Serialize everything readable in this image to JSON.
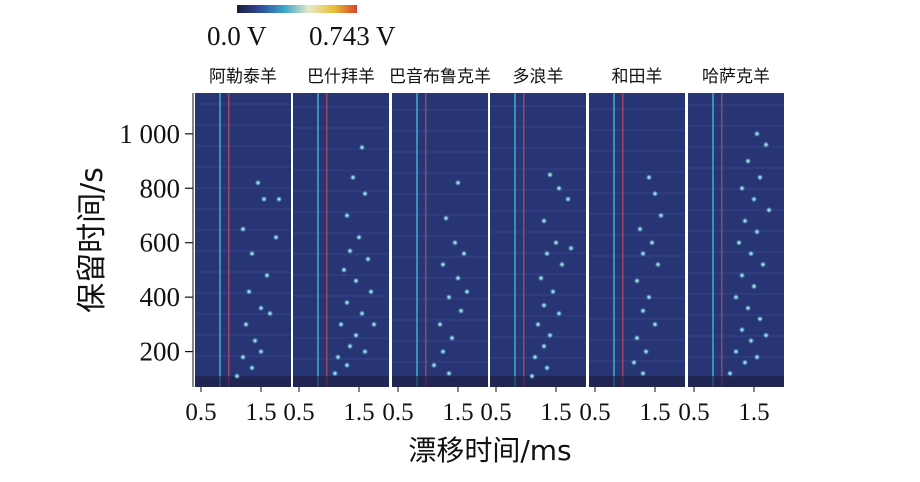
{
  "chart_data": {
    "type": "heatmap",
    "title": "",
    "xlabel": "漂移时间/ms",
    "ylabel": "保留时间/s",
    "colorbar": {
      "min_label": "0.0 V",
      "max_label": "0.743 V",
      "min": 0.0,
      "max": 0.743,
      "colors": [
        "#1b1b3a",
        "#2f4fa0",
        "#3fa7c9",
        "#e9e9c8",
        "#e7c23a",
        "#d8432a"
      ]
    },
    "x_ticks": [
      "0.5",
      "1.5"
    ],
    "x_range": [
      0.4,
      2.0
    ],
    "y_ticks": [
      "200",
      "400",
      "600",
      "800",
      "1 000"
    ],
    "y_tick_values": [
      200,
      400,
      600,
      800,
      1000
    ],
    "y_range": [
      70,
      1150
    ],
    "background_color": "#283574",
    "panels": [
      {
        "name": "阿勒泰羊",
        "spots": [
          [
            1.45,
            820
          ],
          [
            1.55,
            760
          ],
          [
            1.2,
            650
          ],
          [
            1.35,
            560
          ],
          [
            1.6,
            480
          ],
          [
            1.3,
            420
          ],
          [
            1.5,
            360
          ],
          [
            1.25,
            300
          ],
          [
            1.4,
            240
          ],
          [
            1.2,
            180
          ],
          [
            1.35,
            140
          ],
          [
            1.1,
            110
          ],
          [
            1.5,
            200
          ],
          [
            1.65,
            340
          ],
          [
            1.75,
            620
          ],
          [
            1.8,
            760
          ]
        ]
      },
      {
        "name": "巴什拜羊",
        "spots": [
          [
            1.55,
            950
          ],
          [
            1.4,
            840
          ],
          [
            1.6,
            780
          ],
          [
            1.3,
            700
          ],
          [
            1.5,
            620
          ],
          [
            1.35,
            570
          ],
          [
            1.65,
            540
          ],
          [
            1.25,
            500
          ],
          [
            1.45,
            460
          ],
          [
            1.7,
            420
          ],
          [
            1.3,
            380
          ],
          [
            1.55,
            340
          ],
          [
            1.2,
            300
          ],
          [
            1.45,
            260
          ],
          [
            1.35,
            220
          ],
          [
            1.15,
            180
          ],
          [
            1.3,
            150
          ],
          [
            1.1,
            120
          ],
          [
            1.6,
            200
          ],
          [
            1.75,
            300
          ]
        ]
      },
      {
        "name": "巴音布鲁克羊",
        "spots": [
          [
            1.5,
            820
          ],
          [
            1.3,
            690
          ],
          [
            1.45,
            600
          ],
          [
            1.6,
            560
          ],
          [
            1.25,
            520
          ],
          [
            1.5,
            470
          ],
          [
            1.35,
            400
          ],
          [
            1.55,
            350
          ],
          [
            1.2,
            300
          ],
          [
            1.4,
            250
          ],
          [
            1.25,
            200
          ],
          [
            1.1,
            150
          ],
          [
            1.35,
            120
          ],
          [
            1.65,
            420
          ]
        ]
      },
      {
        "name": "多浪羊",
        "spots": [
          [
            1.4,
            850
          ],
          [
            1.55,
            800
          ],
          [
            1.7,
            760
          ],
          [
            1.3,
            680
          ],
          [
            1.5,
            600
          ],
          [
            1.35,
            560
          ],
          [
            1.6,
            520
          ],
          [
            1.25,
            470
          ],
          [
            1.45,
            420
          ],
          [
            1.3,
            370
          ],
          [
            1.55,
            340
          ],
          [
            1.2,
            300
          ],
          [
            1.4,
            260
          ],
          [
            1.3,
            220
          ],
          [
            1.15,
            180
          ],
          [
            1.35,
            140
          ],
          [
            1.1,
            110
          ],
          [
            1.75,
            580
          ]
        ]
      },
      {
        "name": "和田羊",
        "spots": [
          [
            1.4,
            840
          ],
          [
            1.5,
            780
          ],
          [
            1.25,
            650
          ],
          [
            1.45,
            600
          ],
          [
            1.3,
            560
          ],
          [
            1.55,
            520
          ],
          [
            1.2,
            460
          ],
          [
            1.4,
            400
          ],
          [
            1.3,
            350
          ],
          [
            1.5,
            300
          ],
          [
            1.2,
            250
          ],
          [
            1.35,
            200
          ],
          [
            1.15,
            160
          ],
          [
            1.3,
            120
          ],
          [
            1.6,
            700
          ]
        ]
      },
      {
        "name": "哈萨克羊",
        "spots": [
          [
            1.55,
            1000
          ],
          [
            1.7,
            960
          ],
          [
            1.4,
            900
          ],
          [
            1.6,
            840
          ],
          [
            1.3,
            800
          ],
          [
            1.5,
            760
          ],
          [
            1.75,
            720
          ],
          [
            1.35,
            680
          ],
          [
            1.55,
            640
          ],
          [
            1.25,
            600
          ],
          [
            1.45,
            560
          ],
          [
            1.65,
            520
          ],
          [
            1.3,
            480
          ],
          [
            1.5,
            440
          ],
          [
            1.2,
            400
          ],
          [
            1.4,
            360
          ],
          [
            1.6,
            320
          ],
          [
            1.3,
            280
          ],
          [
            1.45,
            240
          ],
          [
            1.2,
            200
          ],
          [
            1.35,
            160
          ],
          [
            1.1,
            120
          ],
          [
            1.55,
            180
          ],
          [
            1.7,
            260
          ]
        ]
      }
    ]
  }
}
